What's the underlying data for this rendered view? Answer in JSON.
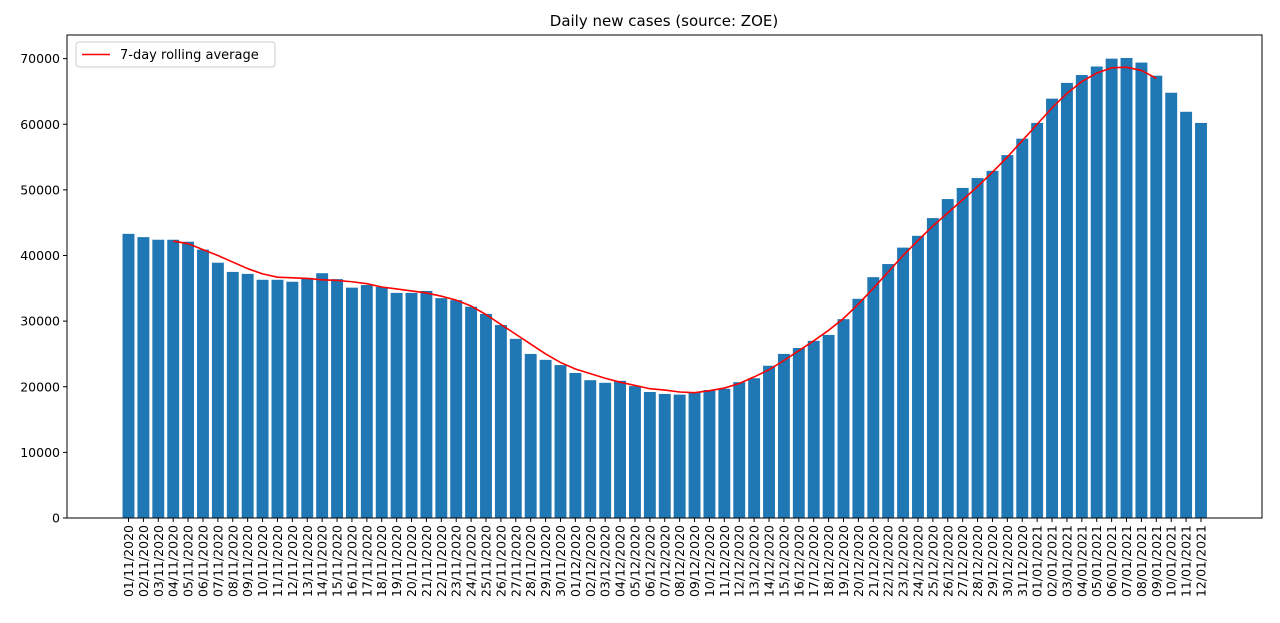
{
  "chart_data": {
    "type": "bar",
    "title": "Daily new cases (source: ZOE)",
    "categories": [
      "01/11/2020",
      "02/11/2020",
      "03/11/2020",
      "04/11/2020",
      "05/11/2020",
      "06/11/2020",
      "07/11/2020",
      "08/11/2020",
      "09/11/2020",
      "10/11/2020",
      "11/11/2020",
      "12/11/2020",
      "13/11/2020",
      "14/11/2020",
      "15/11/2020",
      "16/11/2020",
      "17/11/2020",
      "18/11/2020",
      "19/11/2020",
      "20/11/2020",
      "21/11/2020",
      "22/11/2020",
      "23/11/2020",
      "24/11/2020",
      "25/11/2020",
      "26/11/2020",
      "27/11/2020",
      "28/11/2020",
      "29/11/2020",
      "30/11/2020",
      "01/12/2020",
      "02/12/2020",
      "03/12/2020",
      "04/12/2020",
      "05/12/2020",
      "06/12/2020",
      "07/12/2020",
      "08/12/2020",
      "09/12/2020",
      "10/12/2020",
      "11/12/2020",
      "12/12/2020",
      "13/12/2020",
      "14/12/2020",
      "15/12/2020",
      "16/12/2020",
      "17/12/2020",
      "18/12/2020",
      "19/12/2020",
      "20/12/2020",
      "21/12/2020",
      "22/12/2020",
      "23/12/2020",
      "24/12/2020",
      "25/12/2020",
      "26/12/2020",
      "27/12/2020",
      "28/12/2020",
      "29/12/2020",
      "30/12/2020",
      "31/12/2020",
      "01/01/2021",
      "02/01/2021",
      "03/01/2021",
      "04/01/2021",
      "05/01/2021",
      "06/01/2021",
      "07/01/2021",
      "08/01/2021",
      "09/01/2021",
      "10/01/2021",
      "11/01/2021",
      "12/01/2021"
    ],
    "values": [
      43300,
      42800,
      42400,
      42400,
      42100,
      40900,
      38900,
      37500,
      37200,
      36300,
      36300,
      36000,
      36600,
      37300,
      36400,
      35100,
      35500,
      35200,
      34300,
      34300,
      34600,
      33500,
      33200,
      32200,
      31100,
      29400,
      27300,
      25000,
      24100,
      23300,
      22100,
      21000,
      20600,
      20900,
      20100,
      19200,
      18900,
      18800,
      19200,
      19500,
      19700,
      20700,
      21300,
      23200,
      25000,
      25900,
      27000,
      27900,
      30300,
      33400,
      36700,
      38700,
      41200,
      43000,
      45700,
      48600,
      50300,
      51800,
      52900,
      55300,
      57800,
      60200,
      63900,
      66300,
      67500,
      68800,
      70000,
      70100,
      69400,
      67400,
      64800,
      61900,
      60200
    ],
    "color": "#1f77b4",
    "line": {
      "type": "line",
      "name": "7-day rolling average",
      "color": "#ff0000",
      "values": [
        null,
        null,
        null,
        42200,
        41800,
        40900,
        40000,
        39000,
        38000,
        37200,
        36700,
        36600,
        36500,
        36300,
        36200,
        36000,
        35700,
        35200,
        34900,
        34600,
        34300,
        33800,
        33200,
        32300,
        31000,
        29500,
        28000,
        26500,
        25000,
        23700,
        22700,
        22000,
        21300,
        20700,
        20200,
        19700,
        19500,
        19200,
        19100,
        19400,
        19800,
        20500,
        21500,
        22600,
        24000,
        25500,
        27000,
        28600,
        30400,
        32600,
        35000,
        37500,
        40000,
        42300,
        44500,
        46500,
        48500,
        50500,
        52700,
        55000,
        57500,
        60000,
        62500,
        64700,
        66500,
        67800,
        68600,
        68700,
        68200,
        67000,
        null,
        null,
        null
      ]
    },
    "ylim": [
      0,
      73600
    ],
    "yticks": [
      0,
      10000,
      20000,
      30000,
      40000,
      50000,
      60000,
      70000
    ],
    "legend": "upper left"
  }
}
